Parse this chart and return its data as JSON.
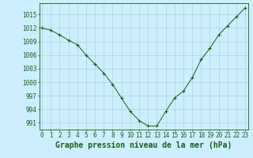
{
  "x": [
    0,
    1,
    2,
    3,
    4,
    5,
    6,
    7,
    8,
    9,
    10,
    11,
    12,
    13,
    14,
    15,
    16,
    17,
    18,
    19,
    20,
    21,
    22,
    23
  ],
  "y": [
    1012,
    1011.5,
    1010.5,
    1009.3,
    1008.3,
    1006,
    1004,
    1002,
    999.5,
    996.5,
    993.5,
    991.5,
    990.3,
    990.3,
    993.5,
    996.5,
    998,
    1001,
    1005,
    1007.5,
    1010.5,
    1012.5,
    1014.5,
    1016.5
  ],
  "line_color": "#1a5e1a",
  "marker": "+",
  "marker_size": 3,
  "marker_color": "#1a5e1a",
  "bg_color": "#cceeff",
  "grid_color": "#aacccc",
  "xlabel": "Graphe pression niveau de la mer (hPa)",
  "xlabel_fontsize": 7,
  "yticks": [
    991,
    994,
    997,
    1000,
    1003,
    1006,
    1009,
    1012,
    1015
  ],
  "xticks": [
    0,
    1,
    2,
    3,
    4,
    5,
    6,
    7,
    8,
    9,
    10,
    11,
    12,
    13,
    14,
    15,
    16,
    17,
    18,
    19,
    20,
    21,
    22,
    23
  ],
  "ylim": [
    989.5,
    1017.5
  ],
  "xlim": [
    -0.3,
    23.3
  ],
  "tick_fontsize": 5.5,
  "axis_color": "#1a5e1a",
  "spine_color": "#1a5e1a",
  "linewidth": 0.7
}
